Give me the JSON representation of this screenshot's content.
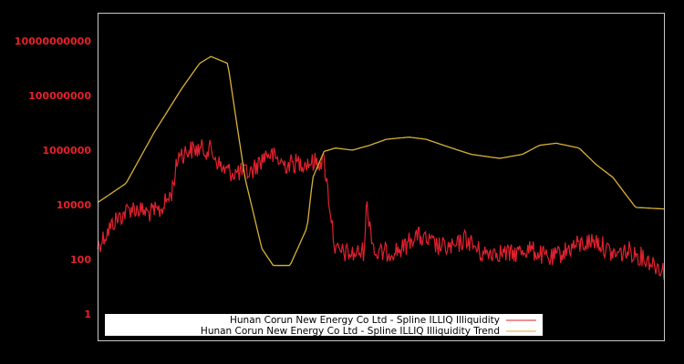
{
  "chart_data": {
    "type": "line",
    "title": "",
    "xlabel": "",
    "ylabel": "",
    "yscale": "log",
    "ylim": [
      0.3,
      100000000000
    ],
    "grid": false,
    "legend_position": "lower center (inside plot)",
    "y_ticks": [
      {
        "value": 1,
        "label": "1"
      },
      {
        "value": 100,
        "label": "100"
      },
      {
        "value": 10000,
        "label": "10000"
      },
      {
        "value": 1000000,
        "label": "1000000"
      },
      {
        "value": 100000000,
        "label": "100000000"
      },
      {
        "value": 10000000000,
        "label": "10000000000"
      }
    ],
    "series": [
      {
        "name": "Hunan Corun New Energy Co Ltd - Spline ILLIQ Illiquidity",
        "color": "#e0212e",
        "x_fraction": [
          0.0,
          0.03,
          0.06,
          0.09,
          0.11,
          0.13,
          0.145,
          0.15,
          0.16,
          0.18,
          0.2,
          0.22,
          0.24,
          0.27,
          0.3,
          0.33,
          0.36,
          0.38,
          0.4,
          0.42,
          0.45,
          0.47,
          0.475,
          0.49,
          0.52,
          0.54,
          0.56,
          0.6,
          0.63,
          0.65,
          0.68,
          0.7,
          0.73,
          0.76,
          0.8,
          0.84,
          0.88,
          0.91,
          0.94,
          0.97,
          1.0
        ],
        "values": [
          300,
          2500,
          8000,
          5000,
          6000,
          25000,
          1000000,
          700000,
          1000000,
          1100000,
          1000000,
          200000,
          150000,
          150000,
          800000,
          300000,
          350000,
          350000,
          400000,
          200,
          150,
          200,
          10000,
          150,
          200,
          250,
          800,
          300,
          250,
          600,
          150,
          200,
          150,
          250,
          100,
          300,
          500,
          150,
          200,
          100,
          40
        ]
      },
      {
        "name": "Hunan Corun New Energy Co Ltd - Spline ILLIQ Illiquidity Trend",
        "color": "#d9b236",
        "x_fraction": [
          0.0,
          0.05,
          0.1,
          0.15,
          0.18,
          0.2,
          0.23,
          0.26,
          0.29,
          0.31,
          0.34,
          0.37,
          0.38,
          0.4,
          0.42,
          0.45,
          0.48,
          0.51,
          0.55,
          0.58,
          0.62,
          0.66,
          0.71,
          0.75,
          0.78,
          0.81,
          0.85,
          0.88,
          0.91,
          0.95,
          1.0
        ],
        "values": [
          12000,
          60000,
          4500000,
          200000000,
          1500000000,
          2700000000,
          1500000000,
          100000,
          250,
          60,
          60,
          1500,
          100000,
          900000,
          1200000,
          1000000,
          1500000,
          2500000,
          3000000,
          2500000,
          1300000,
          700000,
          500000,
          700000,
          1500000,
          1800000,
          1200000,
          300000,
          100000,
          8000,
          7000
        ]
      }
    ]
  },
  "legend": {
    "items": [
      {
        "label": "Hunan Corun New Energy Co Ltd - Spline ILLIQ Illiquidity",
        "color": "#e0212e"
      },
      {
        "label": "Hunan Corun New Energy Co Ltd - Spline ILLIQ Illiquidity Trend",
        "color": "#d9b236"
      }
    ]
  },
  "colors": {
    "background": "#000000",
    "axis": "#c8c8c8",
    "tick_label": "#e8202a",
    "legend_bg": "#ffffff"
  }
}
